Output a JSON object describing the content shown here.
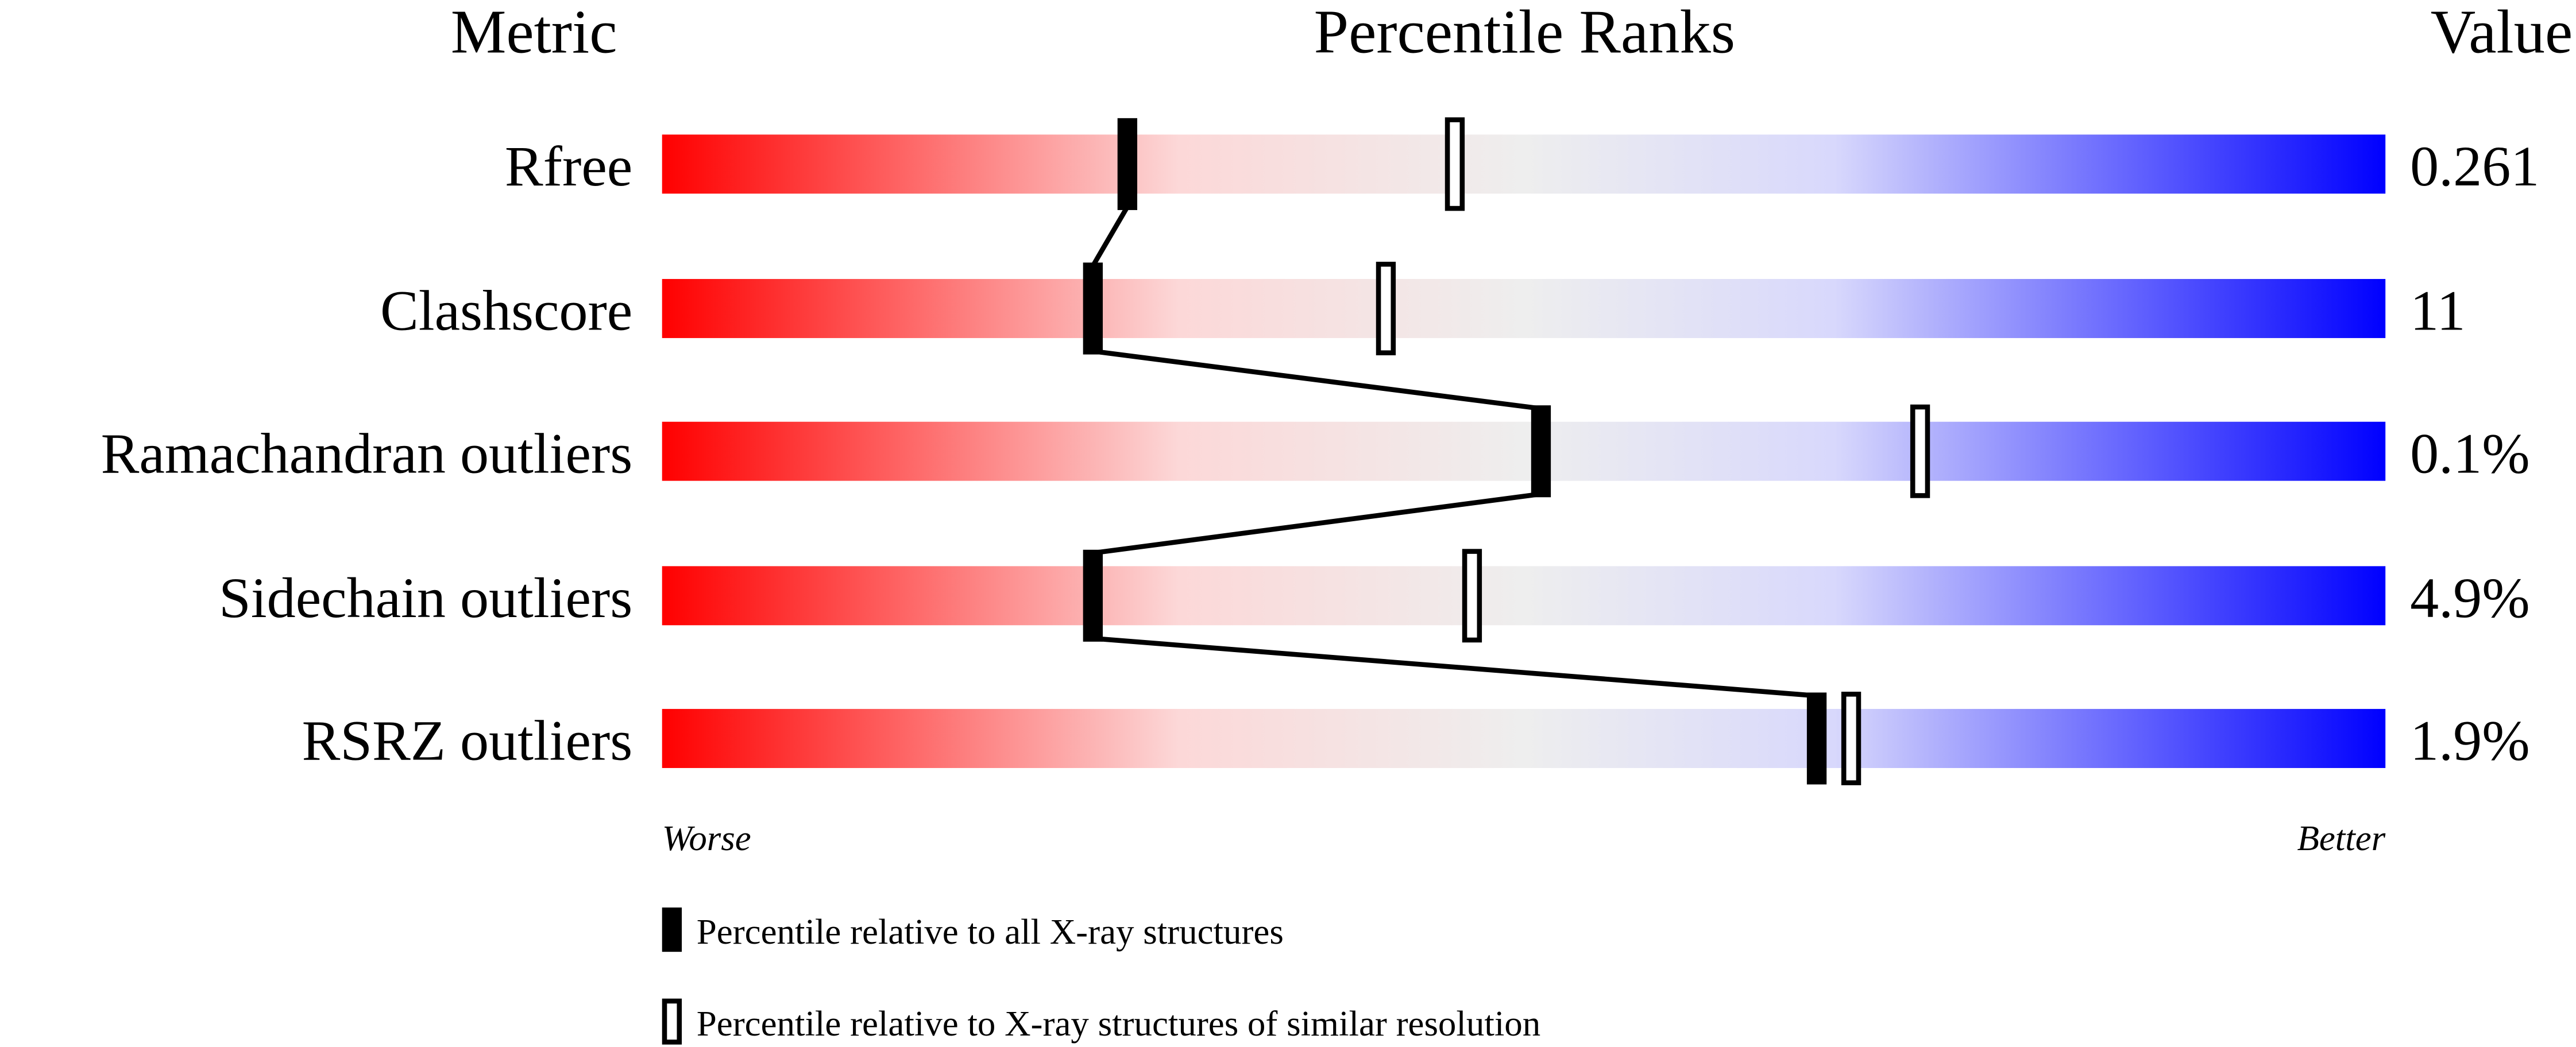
{
  "chart_data": {
    "type": "percentile-slider",
    "headers": {
      "metric": "Metric",
      "percentile": "Percentile Ranks",
      "value": "Value"
    },
    "axis": {
      "left": "Worse",
      "right": "Better",
      "range": [
        0,
        100
      ]
    },
    "gradient_colors": [
      "#ff0000",
      "#fcd8d8",
      "#eeeeee",
      "#d8d8fc",
      "#0000ff"
    ],
    "metrics": [
      {
        "name": "Rfree",
        "value": "0.261",
        "percentile_all": 27,
        "percentile_similar": 46
      },
      {
        "name": "Clashscore",
        "value": "11",
        "percentile_all": 25,
        "percentile_similar": 42
      },
      {
        "name": "Ramachandran outliers",
        "value": "0.1%",
        "percentile_all": 51,
        "percentile_similar": 73
      },
      {
        "name": "Sidechain outliers",
        "value": "4.9%",
        "percentile_all": 25,
        "percentile_similar": 47
      },
      {
        "name": "RSRZ outliers",
        "value": "1.9%",
        "percentile_all": 67,
        "percentile_similar": 69
      }
    ],
    "legend": [
      {
        "marker": "filled",
        "label": "Percentile relative to all X-ray structures"
      },
      {
        "marker": "open",
        "label": "Percentile relative to X-ray structures of similar resolution"
      }
    ]
  }
}
